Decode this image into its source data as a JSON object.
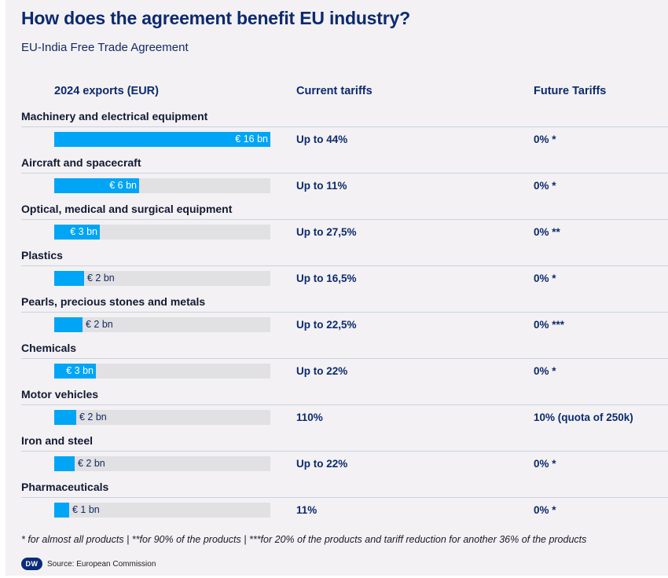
{
  "header": {
    "title": "How does the agreement benefit EU industry?",
    "subtitle": "EU-India Free Trade Agreement"
  },
  "columns": {
    "exports": "2024 exports (EUR)",
    "current": "Current tariffs",
    "future": "Future Tariffs"
  },
  "colors": {
    "bar": "#00a5f5",
    "track": "#e1e0e2",
    "text": "#0c2a6e"
  },
  "chart_data": {
    "type": "bar",
    "orientation": "horizontal",
    "title": "How does the agreement benefit EU industry?",
    "subtitle": "EU-India Free Trade Agreement",
    "xlabel": "2024 exports (EUR)",
    "xlim": [
      0,
      16
    ],
    "unit": "bn EUR",
    "categories": [
      "Machinery and electrical equipment",
      "Aircraft and spacecraft",
      "Optical, medical and surgical equipment",
      "Plastics",
      "Pearls, precious stones and metals",
      "Chemicals",
      "Motor vehicles",
      "Iron and steel",
      "Pharmaceuticals"
    ],
    "values": [
      16,
      6.3,
      3.4,
      2.2,
      2.1,
      3.1,
      1.6,
      1.5,
      1.1
    ],
    "value_labels": [
      "€ 16 bn",
      "€ 6 bn",
      "€ 3 bn",
      "€ 2 bn",
      "€ 2 bn",
      "€ 3 bn",
      "€ 2 bn",
      "€ 2 bn",
      "€ 1 bn"
    ],
    "current_tariffs": [
      "Up to 44%",
      "Up to 11%",
      "Up to 27,5%",
      "Up to 16,5%",
      "Up to 22,5%",
      "Up to 22%",
      "110%",
      "Up to 22%",
      "11%"
    ],
    "future_tariffs": [
      "0% *",
      "0% *",
      "0% **",
      "0% *",
      "0% ***",
      "0% *",
      "10% (quota of 250k)",
      "0% *",
      "0% *"
    ]
  },
  "footnote": "* for almost all products | **for 90% of the products | ***for 20% of the products and tariff reduction for another 36% of the products",
  "source": {
    "logo": "DW",
    "text": "Source: European Commission"
  }
}
